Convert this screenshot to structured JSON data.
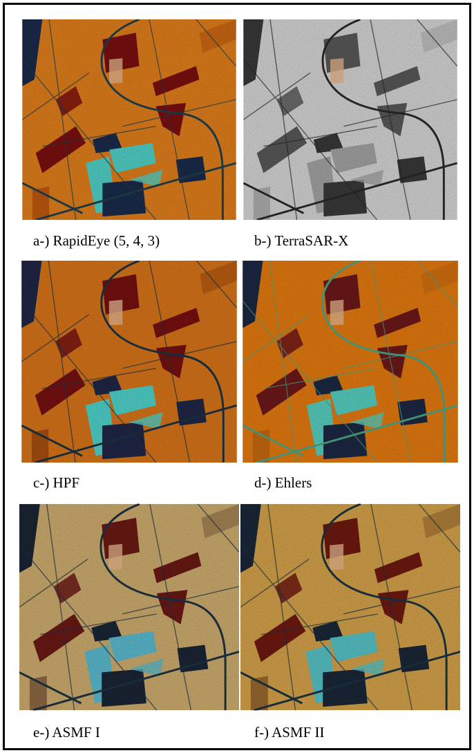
{
  "panels": [
    {
      "caption": "a-) RapidEye (5, 4, 3)"
    },
    {
      "caption": "b-) TerraSAR-X"
    },
    {
      "caption": "c-) HPF"
    },
    {
      "caption": "d-) Ehlers"
    },
    {
      "caption": "e-) ASMF I"
    },
    {
      "caption": "f-) ASMF II"
    }
  ]
}
